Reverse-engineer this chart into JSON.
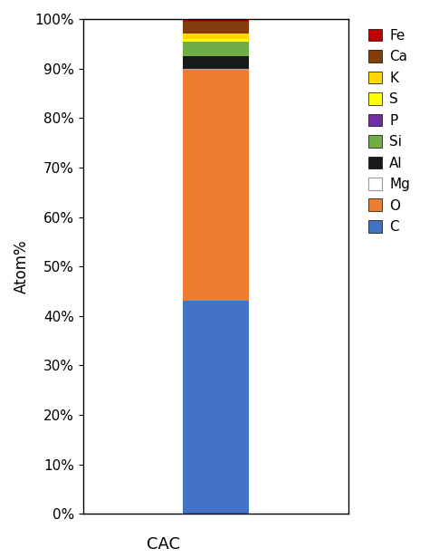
{
  "categories": [
    "CAC"
  ],
  "elements": [
    "C",
    "O",
    "Mg",
    "Al",
    "Si",
    "P",
    "S",
    "K",
    "Ca",
    "Fe"
  ],
  "values": [
    43.0,
    47.0,
    0.0,
    2.5,
    3.0,
    0.0,
    0.5,
    1.0,
    2.5,
    0.5
  ],
  "colors": {
    "C": "#4472C4",
    "O": "#ED7D31",
    "Mg": "#FFFFFF",
    "Al": "#1a1a1a",
    "Si": "#70AD47",
    "P": "#7030A0",
    "S": "#FFFF00",
    "K": "#FFD700",
    "Ca": "#843C0C",
    "Fe": "#C00000"
  },
  "ylabel": "Atom%",
  "xlabel": "CAC",
  "yticks": [
    0,
    10,
    20,
    30,
    40,
    50,
    60,
    70,
    80,
    90,
    100
  ],
  "yticklabels": [
    "0%",
    "10%",
    "20%",
    "30%",
    "40%",
    "50%",
    "60%",
    "70%",
    "80%",
    "90%",
    "100%"
  ],
  "legend_order": [
    "Fe",
    "Ca",
    "K",
    "S",
    "P",
    "Si",
    "Al",
    "Mg",
    "O",
    "C"
  ],
  "bar_width": 0.35,
  "figsize": [
    4.74,
    6.16
  ],
  "dpi": 100
}
